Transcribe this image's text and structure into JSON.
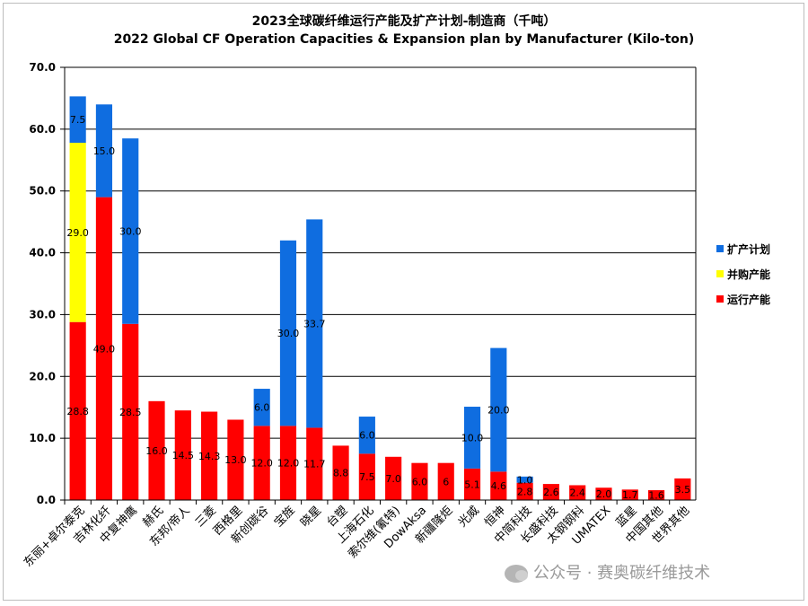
{
  "chart_data": {
    "type": "bar",
    "stacked": true,
    "title": "2023全球碳纤维运行产能及扩产计划-制造商（千吨）",
    "subtitle": "2022 Global CF Operation Capacities & Expansion plan by Manufacturer (Kilo-ton)",
    "ylim": [
      0,
      70
    ],
    "yticks": [
      "0.0",
      "10.0",
      "20.0",
      "30.0",
      "40.0",
      "50.0",
      "60.0",
      "70.0"
    ],
    "legend_position": "right",
    "categories": [
      "东丽+卓尔泰克",
      "吉林化纤",
      "中复神鹰",
      "赫氏",
      "东邦/帝人",
      "三菱",
      "西格里",
      "新创碳谷",
      "宝旌",
      "晓星",
      "台塑",
      "上海石化",
      "索尔维(氰特)",
      "DowAksa",
      "新疆隆炬",
      "光威",
      "恒神",
      "中简科技",
      "长盛科技",
      "太钢钢科",
      "UMATEX",
      "蓝星",
      "中国其他",
      "世界其他"
    ],
    "series": [
      {
        "name": "运行产能",
        "color": "#ff0000",
        "values": [
          28.8,
          49.0,
          28.5,
          16.0,
          14.5,
          14.3,
          13.0,
          12.0,
          12.0,
          11.7,
          8.8,
          7.5,
          7.0,
          6.0,
          6,
          5.1,
          4.6,
          2.8,
          2.6,
          2.4,
          2.0,
          1.7,
          1.6,
          3.5
        ],
        "labels": [
          "28.8",
          "49.0",
          "28.5",
          "16.0",
          "14.5",
          "14.3",
          "13.0",
          "12.0",
          "12.0",
          "11.7",
          "8.8",
          "7.5",
          "7.0",
          "6.0",
          "6",
          "5.1",
          "4.6",
          "2.8",
          "2.6",
          "2.4",
          "2.0",
          "1.7",
          "1.6",
          "3.5"
        ]
      },
      {
        "name": "并购产能",
        "color": "#ffff00",
        "values": [
          29.0,
          0,
          0,
          0,
          0,
          0,
          0,
          0,
          0,
          0,
          0,
          0,
          0,
          0,
          0,
          0,
          0,
          0,
          0,
          0,
          0,
          0,
          0,
          0
        ],
        "labels": [
          "29.0",
          "",
          "",
          "",
          "",
          "",
          "",
          "",
          "",
          "",
          "",
          "",
          "",
          "",
          "",
          "",
          "",
          "",
          "",
          "",
          "",
          "",
          "",
          ""
        ]
      },
      {
        "name": "扩产计划",
        "color": "#0f6de0",
        "values": [
          7.5,
          15.0,
          30.0,
          0,
          0,
          0,
          0,
          6.0,
          30.0,
          33.7,
          0,
          6.0,
          0,
          0,
          0,
          10.0,
          20.0,
          1.0,
          0,
          0,
          0,
          0,
          0,
          0
        ],
        "labels": [
          "7.5",
          "15.0",
          "30.0",
          "",
          "",
          "",
          "",
          "6.0",
          "30.0",
          "33.7",
          "",
          "6.0",
          "",
          "",
          "",
          "10.0",
          "20.0",
          "1.0",
          "",
          "",
          "",
          "",
          "",
          ""
        ]
      }
    ]
  },
  "watermark": "公众号 · 赛奥碳纤维技术"
}
